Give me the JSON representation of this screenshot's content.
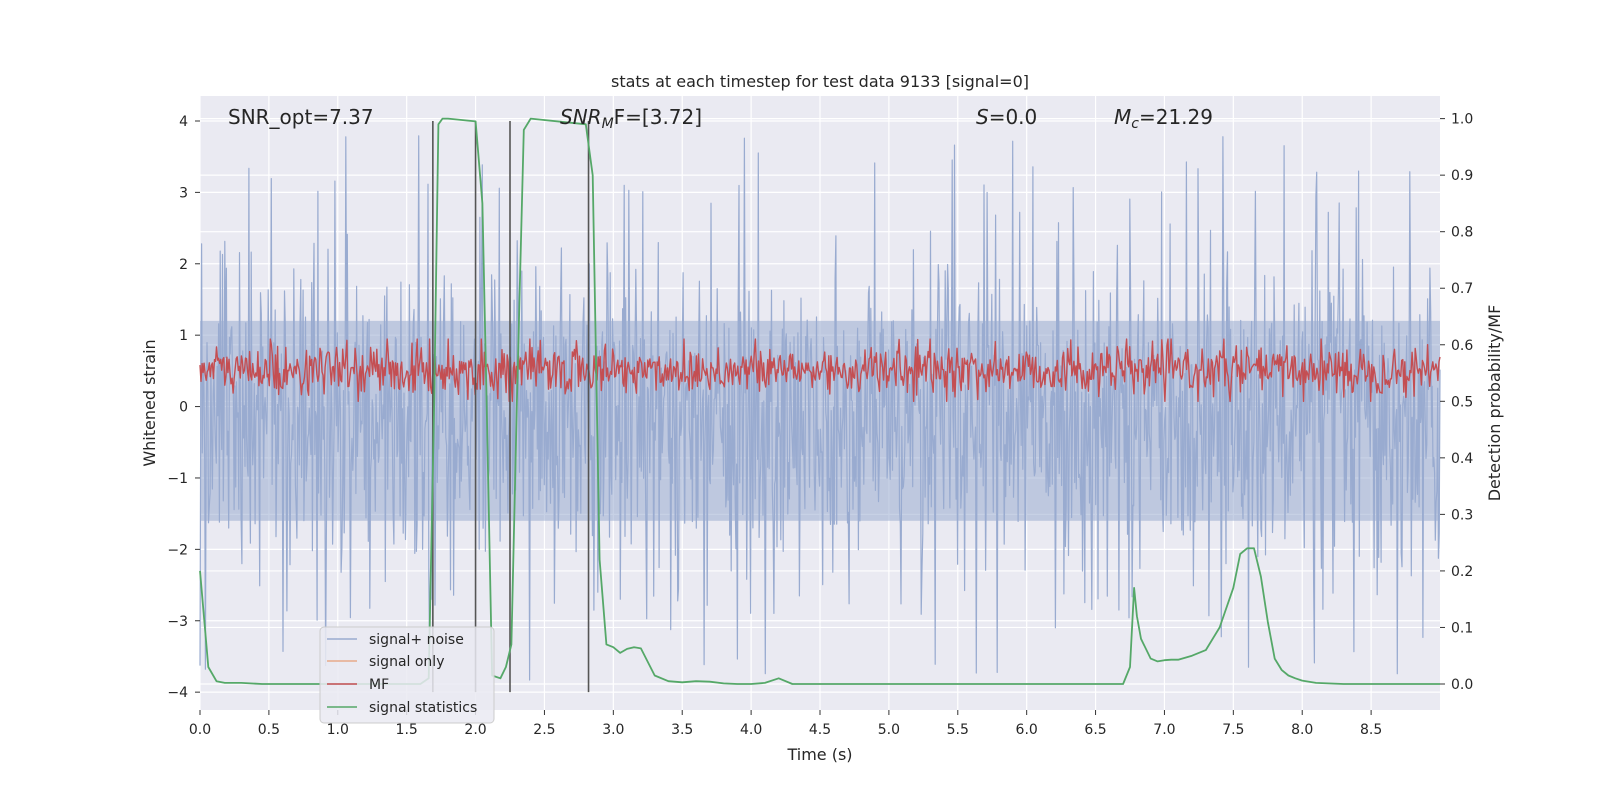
{
  "chart_data": {
    "type": "line",
    "title": "stats at each timestep for test data 9133 [signal=0]",
    "xlabel": "Time (s)",
    "ylabel": "Whitened strain",
    "y2label": "Detection probability/MF",
    "xlim": [
      0.0,
      9.0
    ],
    "ylim": [
      -4.25,
      4.35
    ],
    "y2lim": [
      -0.046,
      1.04
    ],
    "xticks": [
      0.0,
      0.5,
      1.0,
      1.5,
      2.0,
      2.5,
      3.0,
      3.5,
      4.0,
      4.5,
      5.0,
      5.5,
      6.0,
      6.5,
      7.0,
      7.5,
      8.0,
      8.5
    ],
    "xtick_labels": [
      "0.0",
      "0.5",
      "1.0",
      "1.5",
      "2.0",
      "2.5",
      "3.0",
      "3.5",
      "4.0",
      "4.5",
      "5.0",
      "5.5",
      "6.0",
      "6.5",
      "7.0",
      "7.5",
      "8.0",
      "8.5"
    ],
    "yticks": [
      4,
      3,
      2,
      1,
      0,
      -1,
      -2,
      -3,
      -4
    ],
    "ytick_labels": [
      "4",
      "3",
      "2",
      "1",
      "0",
      "−1",
      "−2",
      "−3",
      "−4"
    ],
    "y2ticks": [
      1.0,
      0.9,
      0.8,
      0.7,
      0.6,
      0.5,
      0.4,
      0.3,
      0.2,
      0.1,
      0.0
    ],
    "y2tick_labels": [
      "1.0",
      "0.9",
      "0.8",
      "0.7",
      "0.6",
      "0.5",
      "0.4",
      "0.3",
      "0.2",
      "0.1",
      "0.0"
    ],
    "annotations": {
      "snr_opt": "SNR_opt=7.37",
      "snr_mf_name": "SNR",
      "snr_mf_sub": "M",
      "snr_mf_value": "F=[3.72]",
      "s_name": "S",
      "s_value": "=0.0",
      "mc_name": "M",
      "mc_sub": "c",
      "mc_value": "=21.29"
    },
    "vlines": {
      "x": [
        1.69,
        2.0,
        2.25,
        2.82
      ],
      "y_range": [
        -4.0,
        4.0
      ],
      "color": "#555555"
    },
    "series": [
      {
        "name": "signal+ noise",
        "axis": "left",
        "color": "#99abd0",
        "description": "whitened strain noise, roughly within ±2 with peaks near ±3.8"
      },
      {
        "name": "signal only",
        "axis": "left",
        "color": "#e8a98a",
        "values": []
      },
      {
        "name": "MF",
        "axis": "left",
        "color": "#c44e52",
        "description": "matched-filter output oscillating around 0.3 with amplitude about 0.3"
      },
      {
        "name": "signal statistics",
        "axis": "right",
        "color": "#55a868",
        "x": [
          0.0,
          0.06,
          0.12,
          0.18,
          0.3,
          0.45,
          0.6,
          0.8,
          1.0,
          1.2,
          1.4,
          1.6,
          1.66,
          1.7,
          1.73,
          1.76,
          1.8,
          2.0,
          2.05,
          2.08,
          2.12,
          2.18,
          2.22,
          2.26,
          2.3,
          2.35,
          2.4,
          2.8,
          2.85,
          2.9,
          2.95,
          3.0,
          3.05,
          3.1,
          3.15,
          3.2,
          3.3,
          3.4,
          3.5,
          3.6,
          3.7,
          3.8,
          3.9,
          4.0,
          4.1,
          4.2,
          4.3,
          4.4,
          4.6,
          5.0,
          6.0,
          6.7,
          6.75,
          6.78,
          6.8,
          6.83,
          6.9,
          6.95,
          7.0,
          7.05,
          7.1,
          7.2,
          7.3,
          7.4,
          7.5,
          7.55,
          7.6,
          7.65,
          7.7,
          7.75,
          7.8,
          7.85,
          7.9,
          7.95,
          8.0,
          8.1,
          8.3,
          9.0
        ],
        "values": [
          0.2,
          0.03,
          0.005,
          0.002,
          0.002,
          0.0,
          0.0,
          0.0,
          0.0,
          0.0,
          0.0,
          0.0,
          0.01,
          0.5,
          0.99,
          1.0,
          1.0,
          0.995,
          0.85,
          0.5,
          0.015,
          0.01,
          0.03,
          0.07,
          0.5,
          0.98,
          1.0,
          0.99,
          0.9,
          0.22,
          0.07,
          0.065,
          0.055,
          0.062,
          0.065,
          0.063,
          0.015,
          0.005,
          0.003,
          0.005,
          0.004,
          0.001,
          0.0,
          0.0,
          0.002,
          0.01,
          0.0,
          0.0,
          0.0,
          0.0,
          0.0,
          0.0,
          0.03,
          0.17,
          0.12,
          0.08,
          0.045,
          0.04,
          0.042,
          0.043,
          0.043,
          0.05,
          0.06,
          0.1,
          0.17,
          0.23,
          0.24,
          0.24,
          0.19,
          0.11,
          0.045,
          0.025,
          0.015,
          0.01,
          0.006,
          0.002,
          0.0,
          0.0
        ]
      }
    ],
    "legend": {
      "location": "lower-left",
      "entries": [
        "signal+ noise",
        "signal only",
        "MF",
        "signal statistics"
      ]
    },
    "grid": true
  }
}
